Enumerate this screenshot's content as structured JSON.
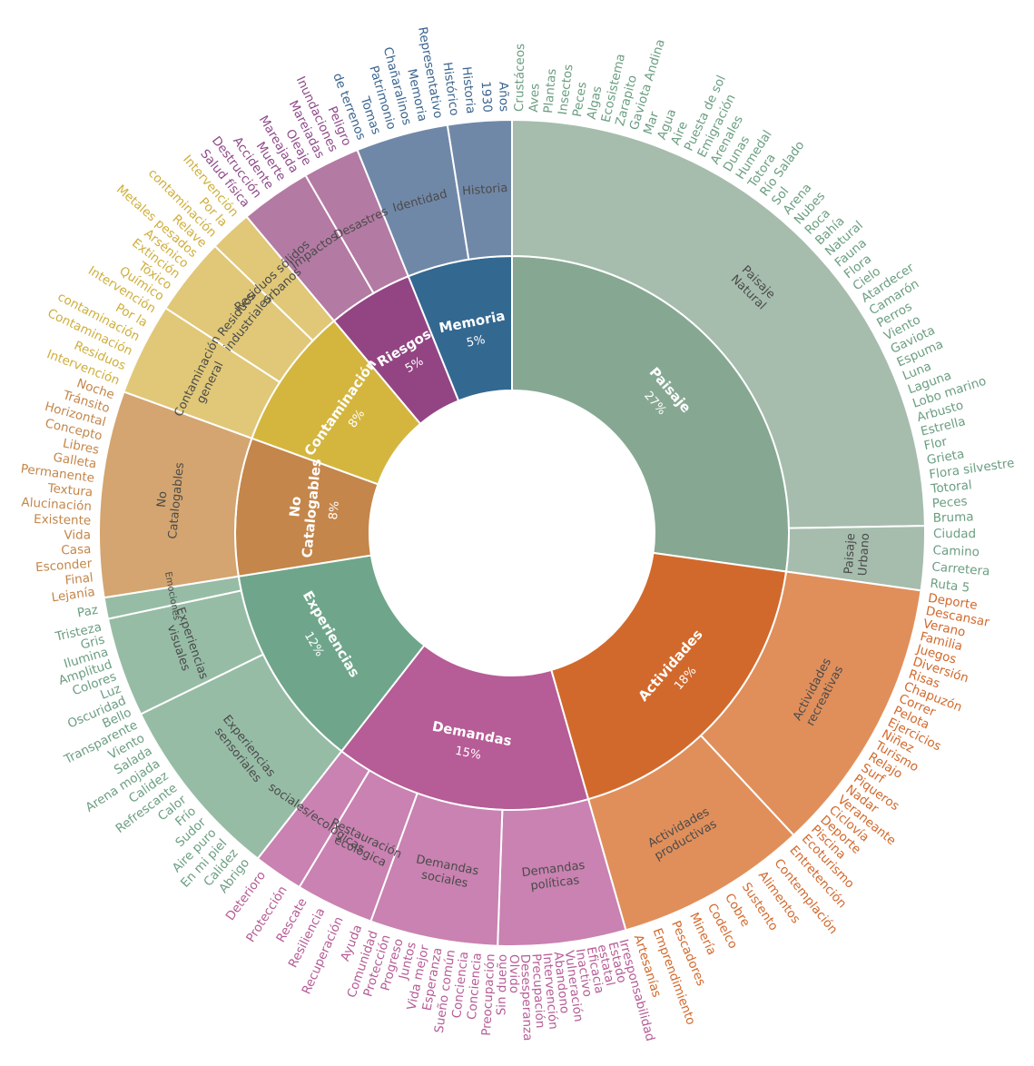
{
  "chart_data": {
    "type": "sunburst",
    "categories": [
      {
        "name": "Paisaje",
        "pct": "27%",
        "color": "#86a893",
        "sub_color": "#a6bdad",
        "word_color": "#6b9e82",
        "subs": [
          {
            "name": "Paisaje\nNatural",
            "words": [
              "Crustáceos",
              "Aves",
              "Plantas",
              "Insectos",
              "Peces",
              "Algas",
              "Ecosistema",
              "Zarapito",
              "Gaviota Andina",
              "Mar",
              "Agua",
              "Aire",
              "Puesta de sol",
              "Emigración",
              "Arenales",
              "Dunas",
              "Humedal",
              "Totora",
              "Río Salado",
              "Sol",
              "Arena",
              "Nubes",
              "Roca",
              "Bahía",
              "Natural",
              "Fauna",
              "Flora",
              "Cielo",
              "Atardecer",
              "Camarón",
              "Perros",
              "Viento",
              "Gaviota",
              "Espuma",
              "Luna",
              "Laguna",
              "Lobo marino",
              "Arbusto",
              "Estrella",
              "Flor",
              "Grieta",
              "Flora silvestre",
              "Totoral",
              "Peces",
              "Bruma"
            ]
          },
          {
            "name": "Paisaje\nUrbano",
            "words": [
              "Ciudad",
              "Camino",
              "Carretera",
              "Ruta 5"
            ]
          }
        ]
      },
      {
        "name": "Actividades",
        "pct": "18%",
        "color": "#d2692c",
        "sub_color": "#e08f5b",
        "word_color": "#d2692c",
        "subs": [
          {
            "name": "Actividades\nrecreativas",
            "words": [
              "Deporte",
              "Descansar",
              "Verano",
              "Familia",
              "Juegos",
              "Diversión",
              "Risas",
              "Chapuzón",
              "Correr",
              "Pelota",
              "Ejercicios",
              "Niñez",
              "Turismo",
              "Relajo",
              "Surf",
              "Piqueros",
              "Nadar",
              "Veraneante",
              "Ciclovía",
              "Deporte",
              "Piscina",
              "Ecoturismo"
            ]
          },
          {
            "name": "Actividades\nproductivas",
            "words": [
              "Entretención",
              "Contemplación",
              "Alimentos",
              "Sustento",
              "Cobre",
              "Codelco",
              "Minería",
              "Pescadores",
              "Emprendimiento",
              "Artesanías"
            ]
          }
        ]
      },
      {
        "name": "Demandas",
        "pct": "15%",
        "color": "#b65c96",
        "sub_color": "#c982b1",
        "word_color": "#b65c96",
        "subs": [
          {
            "name": "Demandas\npolíticas",
            "words": [
              "Irresponsabilidad",
              "Estado",
              "estatal",
              "Eficacia",
              "Inactivo",
              "Vulneración",
              "Abandono",
              "Intervención",
              "Precupación",
              "Desesperanza",
              "Olvido",
              "Sin dueño"
            ]
          },
          {
            "name": "Demandas\nsociales",
            "words": [
              "Preocupación",
              "Conciencia",
              "Conciencia",
              "Sueño común",
              "Esperanza",
              "Vida mejor",
              "Juntos",
              "Progreso",
              "Protección",
              "Comunidad"
            ]
          },
          {
            "name": "Restauración\necológica",
            "words": [
              "Ayuda",
              "Recuperación",
              "Resiliencia",
              "Rescate"
            ]
          },
          {
            "name": "sociales/ecológicas",
            "words": [
              "Protección",
              "Deterioro"
            ]
          }
        ]
      },
      {
        "name": "Experiencias",
        "pct": "12%",
        "color": "#6fa68b",
        "sub_color": "#97bca6",
        "word_color": "#6b9e82",
        "subs": [
          {
            "name": "Experiencias\nsensoriales",
            "words": [
              "Abrigo",
              "Calidez",
              "En mi piel",
              "Aire puro",
              "Sudor",
              "Frío",
              "Calor",
              "Refrescante",
              "Calidez",
              "Arena mojada",
              "Salada",
              "Viento",
              "Transparente"
            ]
          },
          {
            "name": "Experiencias\nvisuales",
            "words": [
              "Bello",
              "Oscuridad",
              "Luz",
              "Colores",
              "Amplitud",
              "Ilumina",
              "Gris",
              "Tristeza"
            ]
          },
          {
            "name": "Emociones",
            "words": [
              "Paz"
            ]
          }
        ]
      },
      {
        "name": "No\nCatalogables",
        "pct": "8%",
        "color": "#c4864a",
        "sub_color": "#d4a570",
        "word_color": "#c4864a",
        "subs": [
          {
            "name": "No\nCatalogables",
            "words": [
              "Lejanía",
              "Final",
              "Esconder",
              "Casa",
              "Vida",
              "Existente",
              "Alucinación",
              "Textura",
              "Permanente",
              "Galleta",
              "Libres",
              "Concepto",
              "Horizontal",
              "Tránsito",
              "Noche"
            ]
          }
        ]
      },
      {
        "name": "Contaminación",
        "pct": "8%",
        "color": "#d4b63f",
        "sub_color": "#e0c878",
        "word_color": "#cfae3a",
        "subs": [
          {
            "name": "Contaminación\ngeneral",
            "words": [
              "Intervención",
              "Residuos",
              "Contaminación",
              "contaminación",
              "Por la",
              "Intervención"
            ]
          },
          {
            "name": "Residuos\nindustriales",
            "words": [
              "Químico",
              "Tóxico",
              "Extinción",
              "Arsénico",
              "Metales pesados",
              "Relave"
            ]
          },
          {
            "name": "Residuos sólidos\nurbanos",
            "words": [
              "contaminación",
              "Por la",
              "Intervención"
            ]
          }
        ]
      },
      {
        "name": "Riesgos",
        "pct": "5%",
        "color": "#934583",
        "sub_color": "#b37aa3",
        "word_color": "#8e4a89",
        "subs": [
          {
            "name": "Impactos",
            "words": [
              "Salud física",
              "Destrucción",
              "Accidente",
              "Muerte",
              "Mareajada"
            ]
          },
          {
            "name": "Desastres",
            "words": [
              "Oleaje",
              "Mareiadas",
              "Inundaciones",
              "Peligro"
            ]
          }
        ]
      },
      {
        "name": "Memoria",
        "pct": "5%",
        "color": "#336891",
        "sub_color": "#7088a8",
        "word_color": "#3b6590",
        "subs": [
          {
            "name": "Identidad",
            "words": [
              "de terrenos",
              "Tomas",
              "Patrimonio",
              "Chañaralinos",
              "Memoria",
              "Representativo"
            ]
          },
          {
            "name": "Historia",
            "words": [
              "Histórico",
              "Historia",
              "1930",
              "Años"
            ]
          }
        ]
      }
    ],
    "extra_words": {
      "Paisaje Natural top": []
    }
  }
}
